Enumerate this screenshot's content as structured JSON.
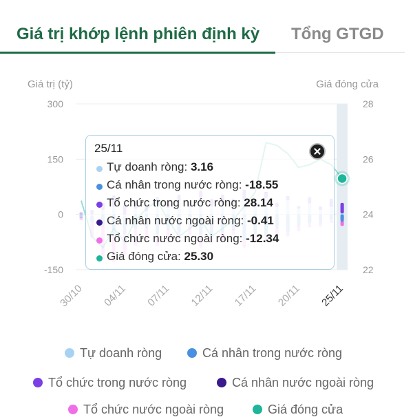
{
  "tabs": [
    {
      "label": "Giá trị khớp lệnh phiên định kỳ",
      "active": true
    },
    {
      "label": "Tổng GTGD",
      "active": false
    }
  ],
  "chart_data": {
    "type": "bar",
    "stacked": true,
    "y_left": {
      "label": "Giá trị (tỷ)",
      "ticks": [
        300,
        150,
        0,
        -150
      ],
      "range": [
        -150,
        300
      ]
    },
    "y_right": {
      "label": "Giá đóng cửa",
      "ticks": [
        28,
        26,
        24,
        22
      ],
      "range": [
        22,
        28
      ]
    },
    "x_tick_labels": [
      "30/10",
      "04/11",
      "07/11",
      "12/11",
      "17/11",
      "20/11",
      "25/11"
    ],
    "grid": true,
    "legend_position": "bottom",
    "series": [
      {
        "name": "Tự doanh ròng",
        "kind": "bar",
        "color": "#a9d2f2",
        "values": [
          0,
          -3,
          12,
          20,
          -5,
          15,
          8,
          25,
          18,
          35,
          20,
          45,
          22,
          30,
          28,
          40,
          25,
          45,
          20,
          38,
          15,
          30,
          12,
          20,
          3.16
        ]
      },
      {
        "name": "Cá nhân trong nước ròng",
        "kind": "bar",
        "color": "#4a90e2",
        "values": [
          -8,
          -20,
          -30,
          -60,
          -45,
          -40,
          -35,
          -55,
          -40,
          -50,
          -30,
          -60,
          -55,
          -50,
          -40,
          -70,
          -50,
          -60,
          -35,
          -50,
          -30,
          -25,
          -20,
          -15,
          -18.55
        ]
      },
      {
        "name": "Tổ chức trong nước ròng",
        "kind": "bar",
        "color": "#7b3fe4",
        "values": [
          6,
          10,
          20,
          30,
          25,
          20,
          15,
          20,
          12,
          15,
          10,
          18,
          20,
          22,
          15,
          25,
          18,
          15,
          12,
          10,
          8,
          15,
          10,
          20,
          28.14
        ]
      },
      {
        "name": "Cá nhân nước ngoài ròng",
        "kind": "bar",
        "color": "#3a1a8c",
        "values": [
          -2,
          2,
          -3,
          1,
          -2,
          2,
          -1,
          1,
          -2,
          3,
          -1,
          2,
          -2,
          1,
          -1,
          2,
          -1,
          1,
          -2,
          2,
          -1,
          1,
          -1,
          2,
          -0.41
        ]
      },
      {
        "name": "Tổ chức nước ngoài ròng",
        "kind": "bar",
        "color": "#f06fe8",
        "values": [
          -5,
          -40,
          -90,
          -70,
          -60,
          -45,
          -40,
          -30,
          -35,
          -20,
          -25,
          -30,
          -20,
          -25,
          -15,
          -20,
          -25,
          -15,
          -20,
          -10,
          -15,
          -10,
          -12,
          -8,
          -12.34
        ]
      },
      {
        "name": "Giá đóng cửa",
        "kind": "line",
        "color": "#1fb59a",
        "values": [
          24.5,
          23.2,
          22.8,
          23.5,
          23.0,
          23.8,
          24.2,
          24.5,
          23.8,
          23.2,
          23.5,
          23.8,
          23.2,
          23.5,
          23.8,
          24.3,
          24.8,
          26.6,
          26.5,
          26.2,
          25.7,
          25.8,
          26.0,
          25.8,
          25.3
        ]
      }
    ]
  },
  "tooltip": {
    "date": "25/11",
    "rows": [
      {
        "label": "Tự doanh ròng: ",
        "value": "3.16"
      },
      {
        "label": "Cá nhân trong nước ròng: ",
        "value": "-18.55"
      },
      {
        "label": "Tổ chức trong nước ròng: ",
        "value": "28.14"
      },
      {
        "label": "Cá nhân nước ngoài ròng: ",
        "value": "-0.41"
      },
      {
        "label": "Tổ chức nước ngoài ròng: ",
        "value": "-12.34"
      },
      {
        "label": "Giá đóng cửa: ",
        "value": "25.30"
      }
    ]
  },
  "legend": [
    {
      "label": "Tự doanh ròng"
    },
    {
      "label": "Cá nhân trong nước ròng"
    },
    {
      "label": "Tổ chức trong nước ròng"
    },
    {
      "label": "Cá nhân nước ngoài ròng"
    },
    {
      "label": "Tổ chức nước ngoài ròng"
    },
    {
      "label": "Giá đóng cửa"
    }
  ]
}
